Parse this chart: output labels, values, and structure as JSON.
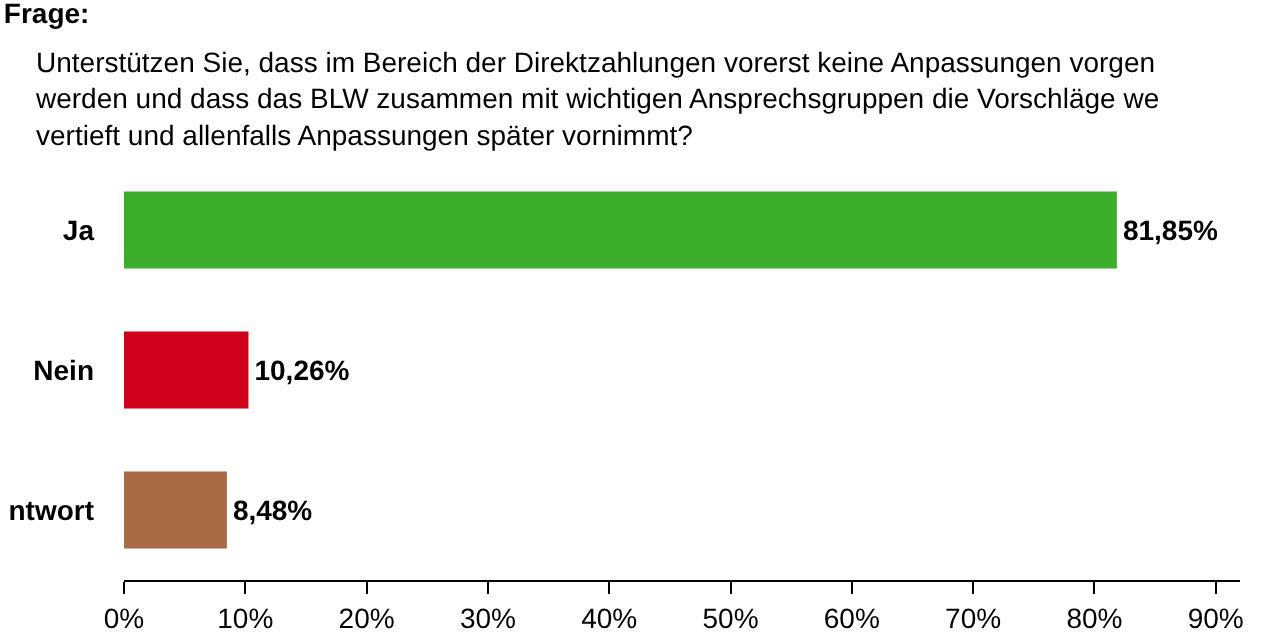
{
  "chart_data": {
    "type": "bar",
    "orientation": "horizontal",
    "title": "Frage:",
    "subtitle": "Unterstützen Sie, dass im Bereich der Direktzahlungen vorerst keine Anpassungen vorgen\nwerden und dass das BLW zusammen mit wichtigen Ansprechsgruppen die Vorschläge we\nvertieft und allenfalls Anpassungen später vornimmt?",
    "categories": [
      "Ja",
      "Nein",
      "ntwort"
    ],
    "values": [
      81.85,
      10.26,
      8.48
    ],
    "colors": [
      "#3dae2b",
      "#d0021b",
      "#a96b43"
    ],
    "value_labels": [
      "81,85%",
      "10,26%",
      "8,48%"
    ],
    "xlim": [
      0,
      92
    ],
    "xticks": [
      {
        "value": 0,
        "label": "0%"
      },
      {
        "value": 10,
        "label": "10%"
      },
      {
        "value": 20,
        "label": "20%"
      },
      {
        "value": 30,
        "label": "30%"
      },
      {
        "value": 40,
        "label": "40%"
      },
      {
        "value": 50,
        "label": "50%"
      },
      {
        "value": 60,
        "label": "60%"
      },
      {
        "value": 70,
        "label": "70%"
      },
      {
        "value": 80,
        "label": "80%"
      },
      {
        "value": 90,
        "label": "90%"
      }
    ],
    "grid": false
  }
}
